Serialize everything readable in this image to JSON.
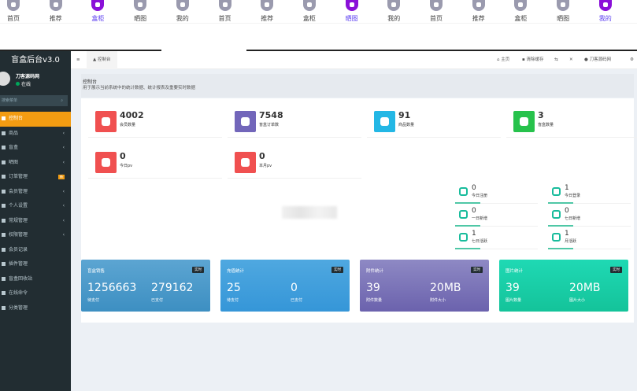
{
  "tabbar": [
    {
      "label": "首页",
      "active": false
    },
    {
      "label": "推荐",
      "active": false
    },
    {
      "label": "盒柜",
      "active": true
    },
    {
      "label": "晒图",
      "active": false
    },
    {
      "label": "我的",
      "active": false
    },
    {
      "label": "首页",
      "active": false
    },
    {
      "label": "推荐",
      "active": false
    },
    {
      "label": "盒柜",
      "active": false
    },
    {
      "label": "晒图",
      "active": true
    },
    {
      "label": "我的",
      "active": false
    },
    {
      "label": "首页",
      "active": false
    },
    {
      "label": "推荐",
      "active": false
    },
    {
      "label": "盒柜",
      "active": false
    },
    {
      "label": "晒图",
      "active": false
    },
    {
      "label": "我的",
      "active": true
    }
  ],
  "sidebar": {
    "brand": "盲盒后台v3.0",
    "user": "刀客源码网",
    "status": "在线",
    "search_placeholder": "搜索菜单",
    "items": [
      {
        "label": "控制台"
      },
      {
        "label": "商品",
        "arrow": "‹"
      },
      {
        "label": "盲盒",
        "arrow": "‹"
      },
      {
        "label": "晒图",
        "arrow": "‹"
      },
      {
        "label": "订单管理",
        "badge": "新"
      },
      {
        "label": "会员管理",
        "arrow": "‹"
      },
      {
        "label": "个人设置",
        "arrow": "‹"
      },
      {
        "label": "常规管理",
        "arrow": "‹"
      },
      {
        "label": "权限管理",
        "arrow": "‹"
      },
      {
        "label": "会员记录"
      },
      {
        "label": "插件管理"
      },
      {
        "label": "盲盒回收站"
      },
      {
        "label": "在线命令"
      },
      {
        "label": "分类管理"
      }
    ]
  },
  "topnav": {
    "menu_icon": "≡",
    "current_tab": "控制台",
    "home": "主页",
    "clear_cache": "清除缓存",
    "user": "刀客源码网"
  },
  "header": {
    "title": "控制台",
    "desc": "用于展示当前系统中的统计数据、统计报表及重要实时数据"
  },
  "cards": [
    {
      "value": "4002",
      "label": "会员数量",
      "color": "#f05050"
    },
    {
      "value": "7548",
      "label": "盲盒订单数",
      "color": "#7266ba"
    },
    {
      "value": "91",
      "label": "商品数量",
      "color": "#23b7e5"
    },
    {
      "value": "3",
      "label": "盲盒数量",
      "color": "#27c24c"
    },
    {
      "value": "0",
      "label": "今日pv",
      "color": "#f05050"
    },
    {
      "value": "0",
      "label": "本月pv",
      "color": "#f05050"
    }
  ],
  "small_stats": [
    {
      "value": "0",
      "label": "今日注册"
    },
    {
      "value": "1",
      "label": "今日登录"
    },
    {
      "value": "0",
      "label": "一日新增"
    },
    {
      "value": "0",
      "label": "七日新增"
    },
    {
      "value": "1",
      "label": "七日活跃"
    },
    {
      "value": "1",
      "label": "月活跃"
    }
  ],
  "big_cards": [
    {
      "title": "盲盒销售",
      "badge": "实时",
      "v1": "1256663",
      "l1": "待支付",
      "v2": "279162",
      "l2": "已支付",
      "bg": "linear-gradient(#5ca5d2,#3d8fc2)"
    },
    {
      "title": "充值统计",
      "badge": "实时",
      "v1": "25",
      "l1": "待支付",
      "v2": "0",
      "l2": "已支付",
      "bg": "linear-gradient(#4fa8e0,#3596d8)"
    },
    {
      "title": "附件统计",
      "badge": "实时",
      "v1": "39",
      "l1": "附件数量",
      "v2": "20MB",
      "l2": "附件大小",
      "bg": "linear-gradient(#8e89c4,#6b62ad)"
    },
    {
      "title": "图片统计",
      "badge": "实时",
      "v1": "39",
      "l1": "图片数量",
      "v2": "20MB",
      "l2": "图片大小",
      "bg": "linear-gradient(#1fd9b4,#14c39a)"
    }
  ]
}
